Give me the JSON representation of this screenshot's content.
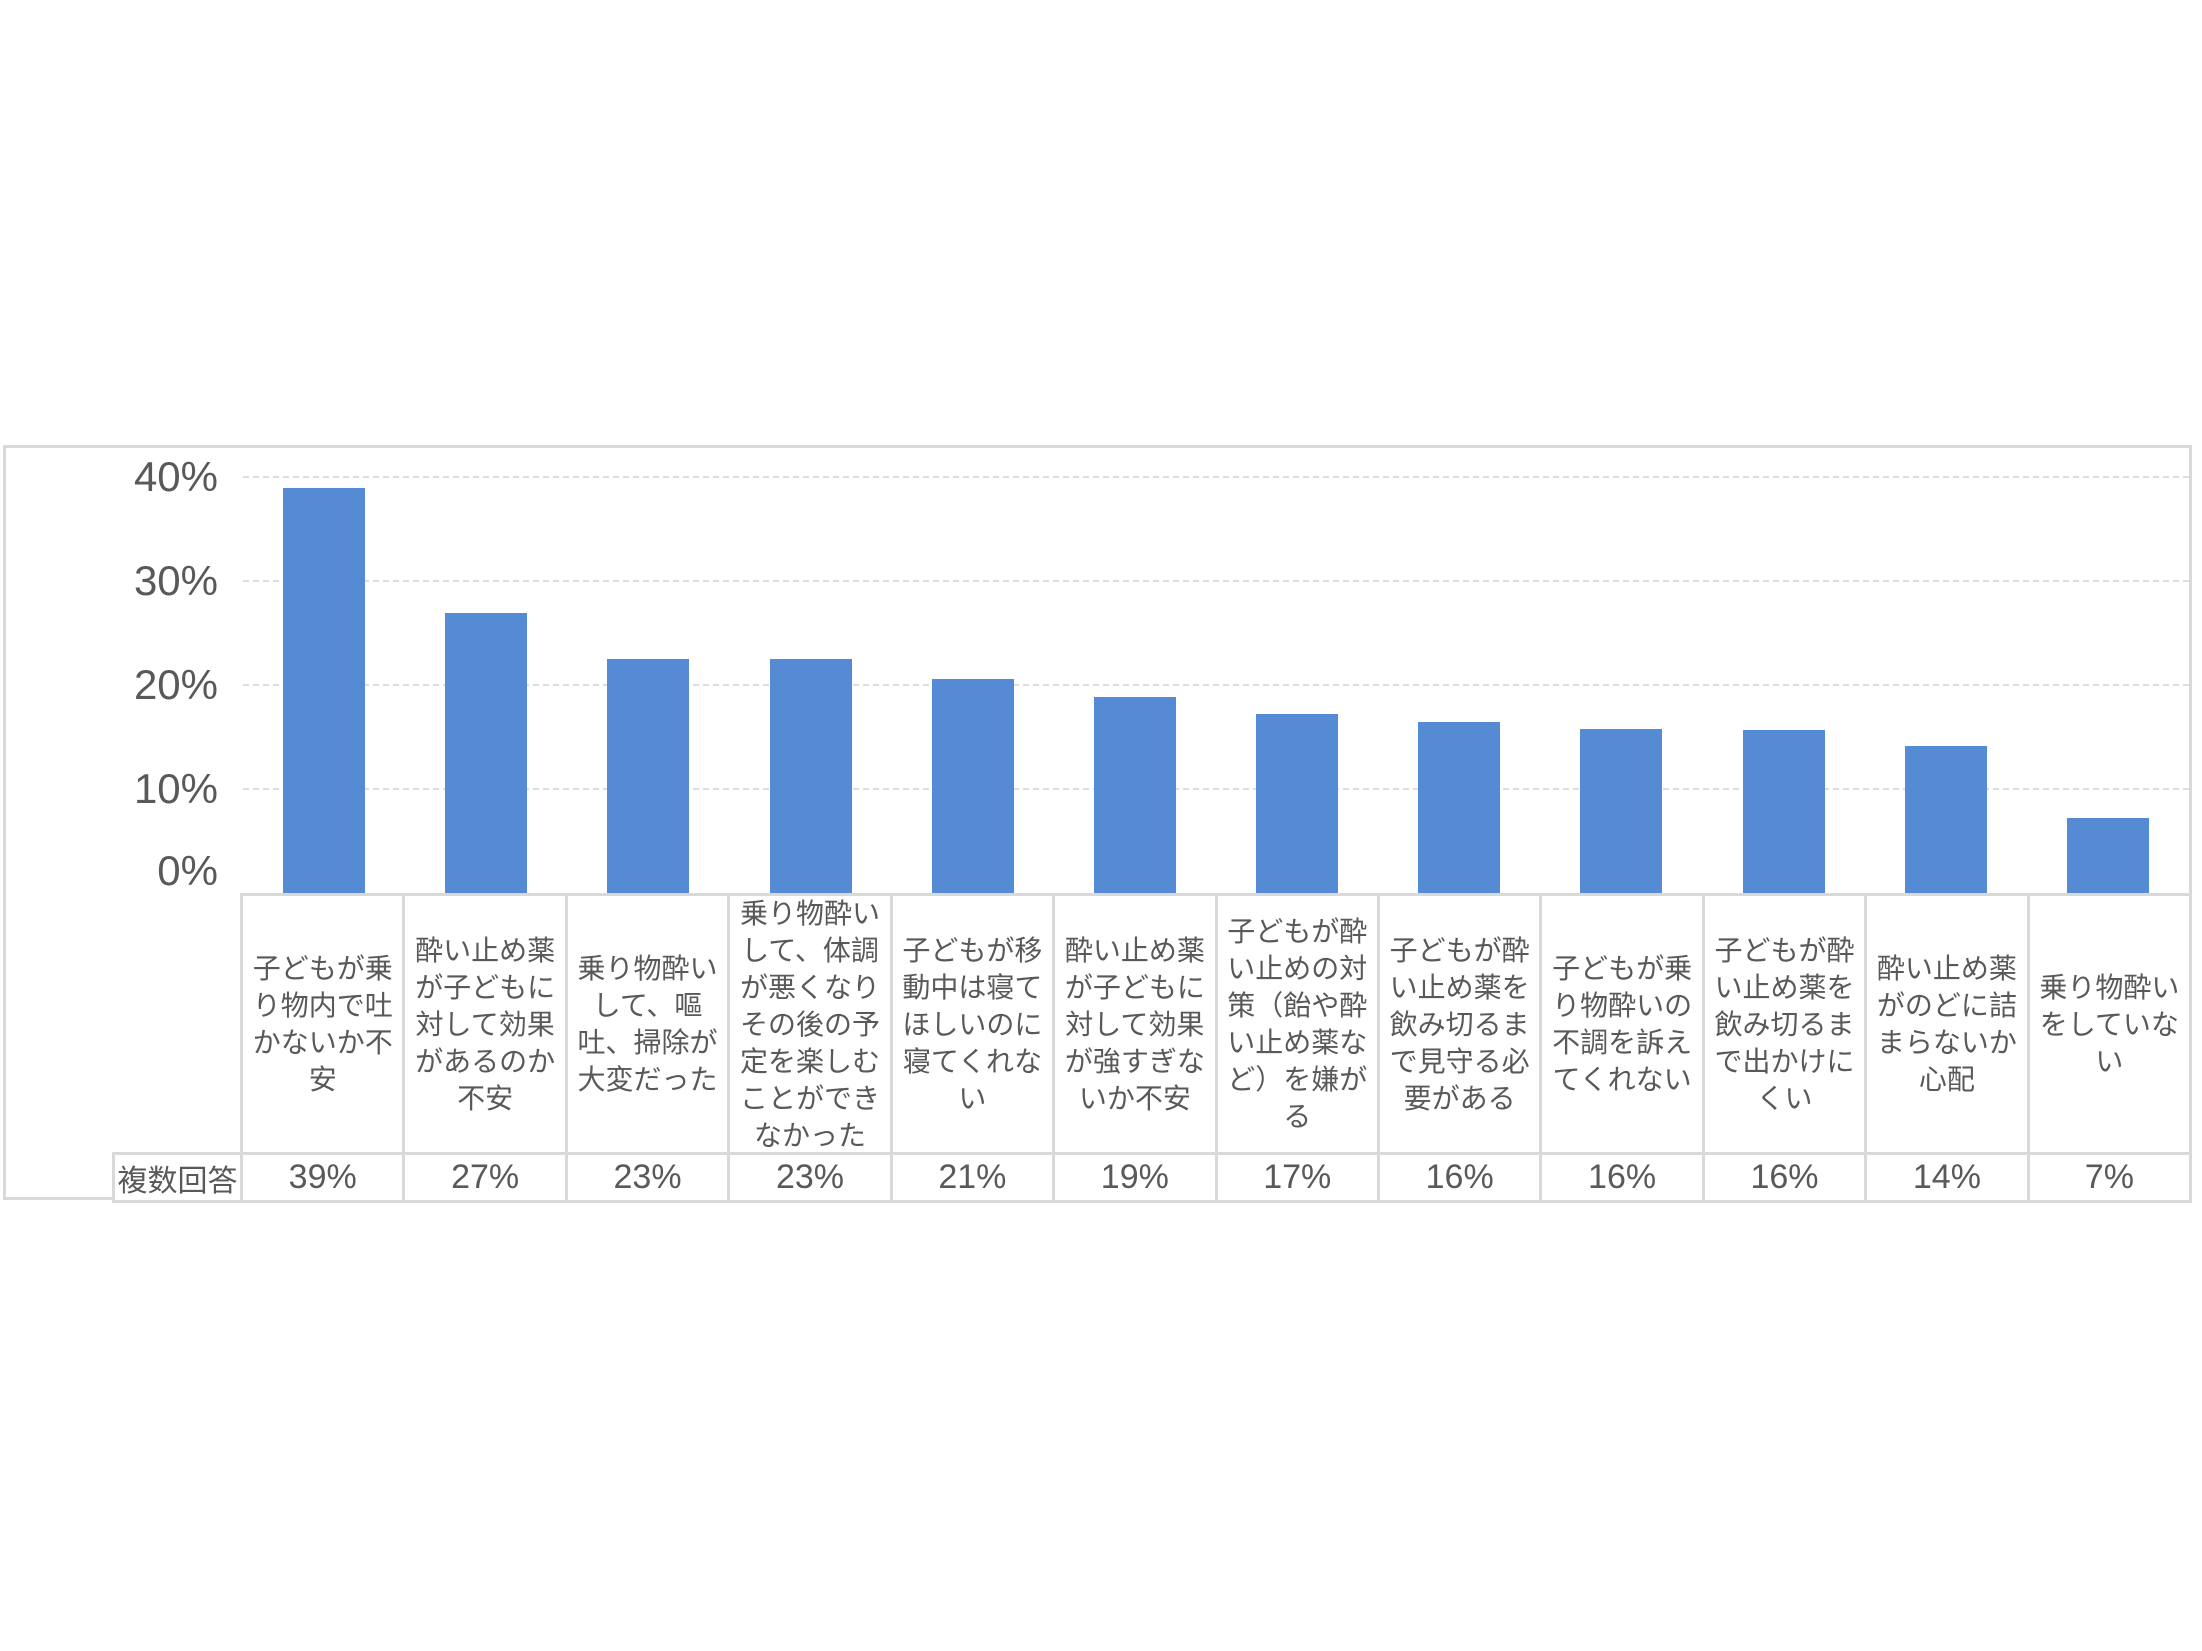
{
  "chart_data": {
    "type": "bar",
    "title": "",
    "xlabel": "",
    "ylabel": "",
    "categories": [
      "子どもが乗り物内で吐かないか不安",
      "酔い止め薬が子どもに対して効果があるのか不安",
      "乗り物酔いして、嘔吐、掃除が大変だった",
      "乗り物酔いして、体調が悪くなりその後の予定を楽しむことができなかった",
      "子どもが移動中は寝てほしいのに寝てくれない",
      "酔い止め薬が子どもに対して効果が強すぎないか不安",
      "子どもが酔い止めの対策（飴や酔い止め薬など）を嫌がる",
      "子どもが酔い止め薬を飲み切るまで見守る必要がある",
      "子どもが乗り物酔いの不調を訴えてくれない",
      "子どもが酔い止め薬を飲み切るまで出かけにくい",
      "酔い止め薬がのどに詰まらないか心配",
      "乗り物酔いをしていない"
    ],
    "values": [
      39,
      27,
      23,
      23,
      21,
      19,
      17,
      16,
      16,
      16,
      14,
      7
    ],
    "value_labels": [
      "39%",
      "27%",
      "23%",
      "23%",
      "21%",
      "19%",
      "17%",
      "16%",
      "16%",
      "16%",
      "14%",
      "7%"
    ],
    "bar_heights_pct": [
      38.9,
      26.9,
      22.5,
      22.5,
      20.6,
      18.8,
      17.2,
      16.4,
      15.8,
      15.7,
      14.1,
      7.2
    ],
    "row_header": "複数回答",
    "ylim": [
      0,
      40
    ],
    "yticks": [
      {
        "label": "40%",
        "value": 40
      },
      {
        "label": "30%",
        "value": 30
      },
      {
        "label": "20%",
        "value": 20
      },
      {
        "label": "10%",
        "value": 10
      },
      {
        "label": "0%",
        "value": 0
      }
    ],
    "grid": "horizontal-dashed",
    "legend_position": "none",
    "bar_color": "#548bd4"
  },
  "colors": {
    "background": "#ffffff",
    "bar": "#548bd4",
    "border": "#d9d9d9",
    "gridline": "#dedede",
    "text": "#595959"
  }
}
